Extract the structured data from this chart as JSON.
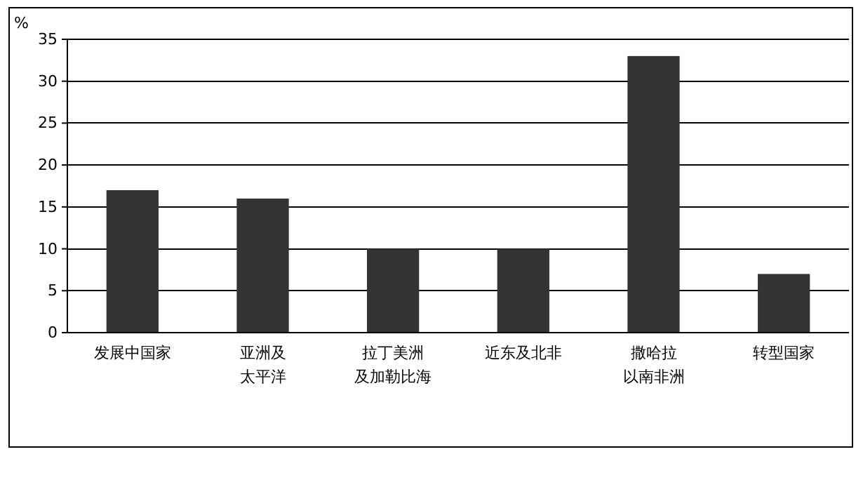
{
  "chart_data": {
    "type": "bar",
    "ylabel": "%",
    "categories": [
      "发展中国家",
      "亚洲及太平洋",
      "拉丁美洲及加勒比海",
      "近东及北非",
      "撒哈拉以南非洲",
      "转型国家"
    ],
    "values": [
      17,
      16,
      10,
      10,
      33,
      7
    ],
    "color": "#333333",
    "ylim": [
      0,
      35
    ],
    "yticks": [
      0,
      5,
      10,
      15,
      20,
      25,
      30,
      35
    ],
    "grid": "y"
  }
}
